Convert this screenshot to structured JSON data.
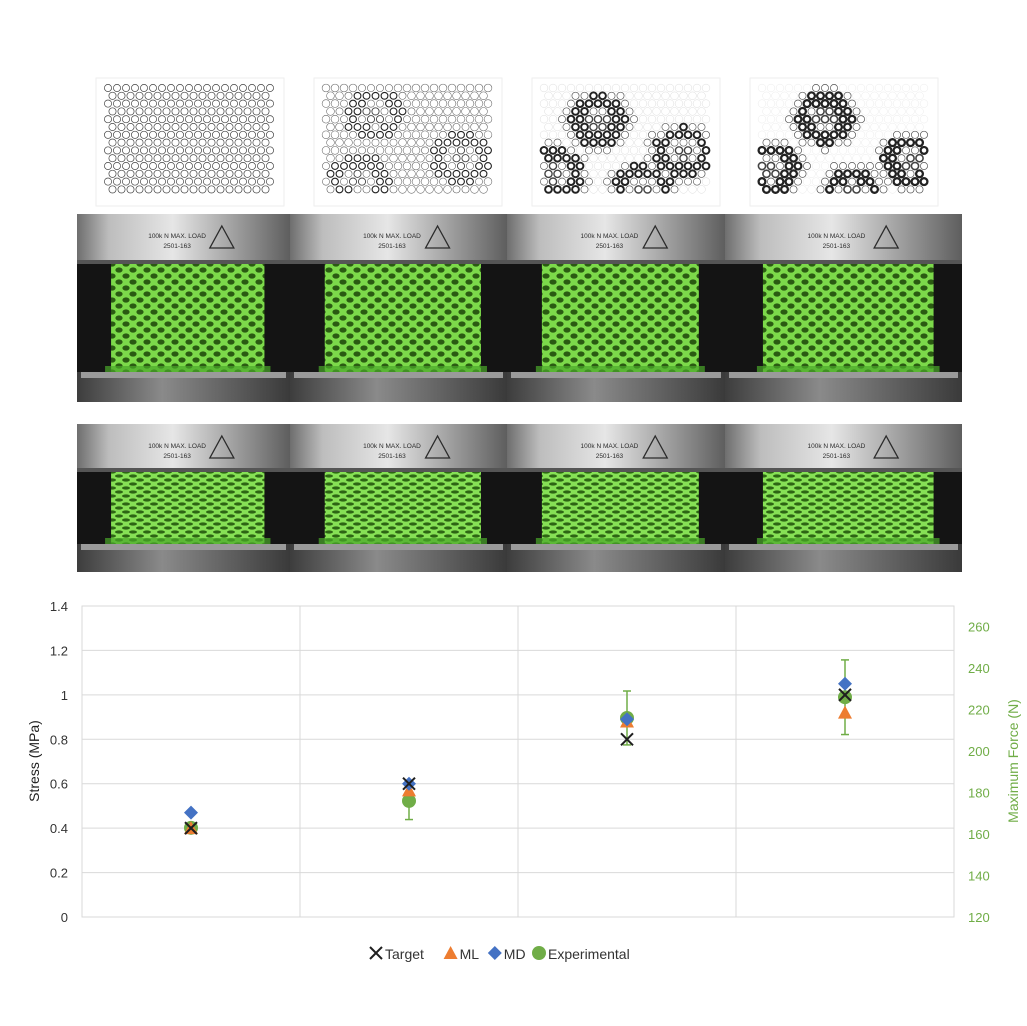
{
  "lattice_patterns": [
    {
      "name": "uniform"
    },
    {
      "name": "slight-gradient"
    },
    {
      "name": "strong-gradient"
    },
    {
      "name": "strongest-gradient"
    }
  ],
  "platen_label": {
    "line1": "100k N MAX. LOAD",
    "line2": "2501-163"
  },
  "specimen_color": "#7cd94a",
  "chart_data": {
    "type": "scatter",
    "title": "",
    "xlabel": "",
    "ylabel": "Stress (MPa)",
    "y2label": "Maximum Force (N)",
    "ylim": [
      0,
      1.4
    ],
    "yticks": [
      "0",
      "0.2",
      "0.4",
      "0.6",
      "0.8",
      "1",
      "1.2",
      "1.4"
    ],
    "y2lim": [
      120,
      270
    ],
    "y2ticks": [
      "120",
      "140",
      "160",
      "180",
      "200",
      "220",
      "240",
      "260"
    ],
    "x": [
      1,
      2,
      3,
      4
    ],
    "xlim": [
      0.5,
      4.5
    ],
    "grid": true,
    "legend_position": "bottom",
    "series": [
      {
        "name": "Target",
        "marker": "x",
        "color": "#1f1f1f",
        "values": [
          0.4,
          0.6,
          0.8,
          1.0
        ]
      },
      {
        "name": "ML",
        "marker": "triangle",
        "color": "#ed7d31",
        "values": [
          0.4,
          0.57,
          0.88,
          0.92
        ]
      },
      {
        "name": "MD",
        "marker": "diamond",
        "color": "#4472c4",
        "values": [
          0.47,
          0.6,
          0.89,
          1.05
        ]
      },
      {
        "name": "Experimental",
        "marker": "circle",
        "color": "#70ad47",
        "axis": "right",
        "values": [
          163,
          176,
          216,
          226
        ],
        "error": [
          2,
          9,
          13,
          18
        ]
      }
    ],
    "colors": {
      "grid": "#d9d9d9",
      "axis_text": "#333333",
      "right_axis_text": "#70ad47"
    }
  }
}
